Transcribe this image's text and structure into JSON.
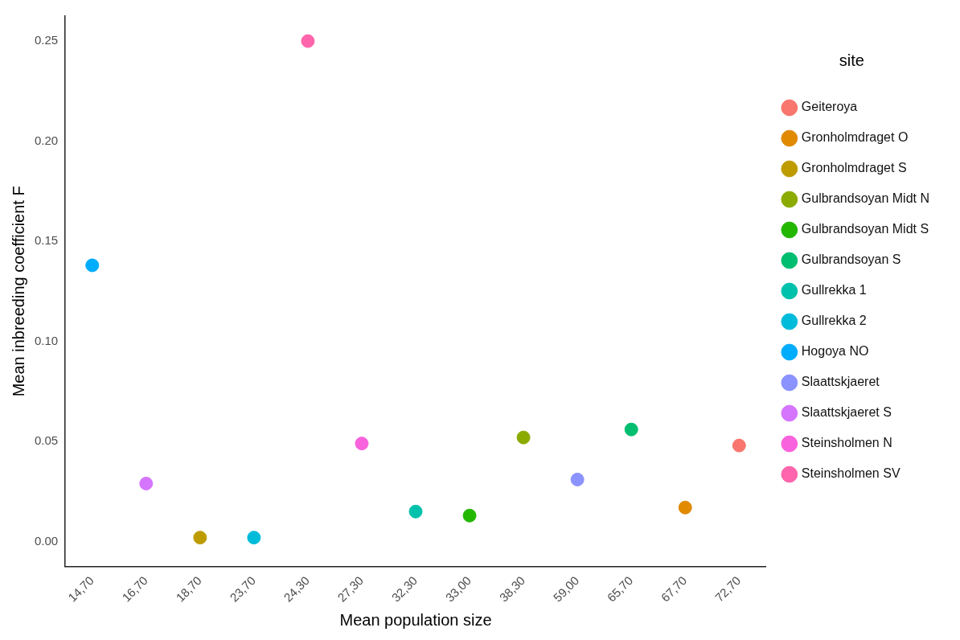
{
  "chart_data": {
    "type": "scatter",
    "xlabel": "Mean population size",
    "ylabel": "Mean inbreeding coefficient F",
    "legend_title": "site",
    "categories": [
      "14,70",
      "16,70",
      "18,70",
      "23,70",
      "24,30",
      "27,30",
      "32,30",
      "33,00",
      "38,30",
      "59,00",
      "65,70",
      "67,70",
      "72,70"
    ],
    "series": [
      {
        "name": "Geiteroya",
        "color": "#f8766d",
        "x": [
          "72,70"
        ],
        "values": [
          0.048
        ]
      },
      {
        "name": "Gronholmdraget O",
        "color": "#e18a00",
        "x": [
          "67,70"
        ],
        "values": [
          0.017
        ]
      },
      {
        "name": "Gronholmdraget S",
        "color": "#be9c00",
        "x": [
          "18,70"
        ],
        "values": [
          0.002
        ]
      },
      {
        "name": "Gulbrandsoyan Midt N",
        "color": "#8cab00",
        "x": [
          "38,30"
        ],
        "values": [
          0.052
        ]
      },
      {
        "name": "Gulbrandsoyan Midt S",
        "color": "#24b700",
        "x": [
          "33,00"
        ],
        "values": [
          0.013
        ]
      },
      {
        "name": "Gulbrandsoyan S",
        "color": "#00be70",
        "x": [
          "65,70"
        ],
        "values": [
          0.056
        ]
      },
      {
        "name": "Gullrekka 1",
        "color": "#00c1ab",
        "x": [
          "32,30"
        ],
        "values": [
          0.015
        ]
      },
      {
        "name": "Gullrekka 2",
        "color": "#00bbda",
        "x": [
          "23,70"
        ],
        "values": [
          0.002
        ]
      },
      {
        "name": "Hogoya NO",
        "color": "#00acfc",
        "x": [
          "14,70"
        ],
        "values": [
          0.138
        ]
      },
      {
        "name": "Slaattskjaeret",
        "color": "#8b93ff",
        "x": [
          "59,00"
        ],
        "values": [
          0.031
        ]
      },
      {
        "name": "Slaattskjaeret S",
        "color": "#d575fe",
        "x": [
          "16,70"
        ],
        "values": [
          0.029
        ]
      },
      {
        "name": "Steinsholmen N",
        "color": "#f962dd",
        "x": [
          "27,30"
        ],
        "values": [
          0.049
        ]
      },
      {
        "name": "Steinsholmen SV",
        "color": "#ff65ac",
        "x": [
          "24,30"
        ],
        "values": [
          0.25
        ]
      }
    ],
    "ylim": [
      -0.0125,
      0.2625
    ],
    "yticks": [
      {
        "value": 0,
        "label": "0.00"
      },
      {
        "value": 0.05,
        "label": "0.05"
      },
      {
        "value": 0.1,
        "label": "0.10"
      },
      {
        "value": 0.15,
        "label": "0.15"
      },
      {
        "value": 0.2,
        "label": "0.20"
      },
      {
        "value": 0.25,
        "label": "0.25"
      }
    ],
    "grid": false,
    "legend": "right",
    "marker": "circle"
  }
}
